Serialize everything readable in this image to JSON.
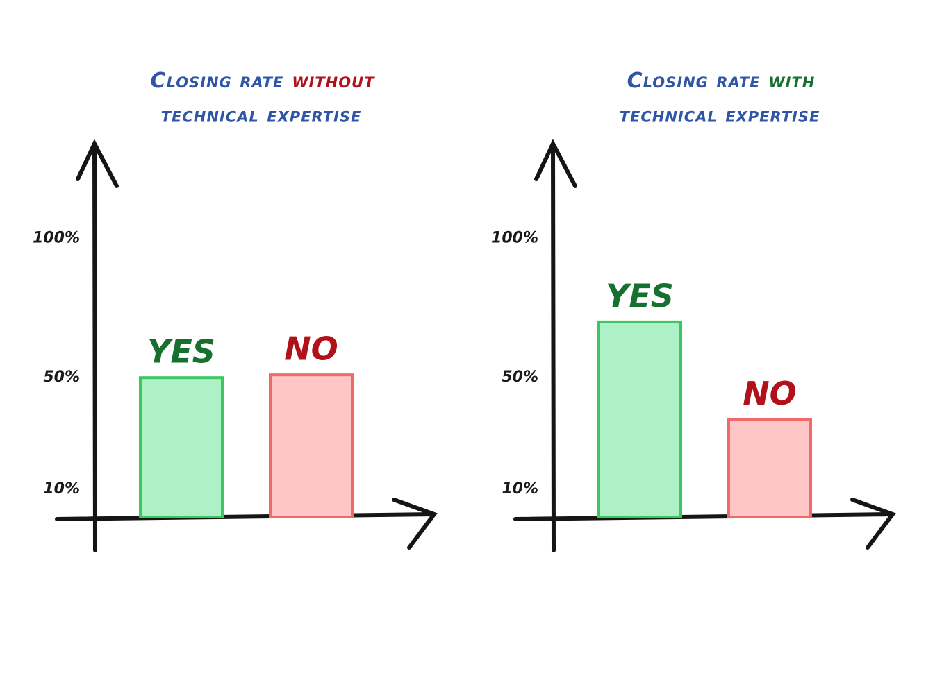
{
  "chart_data": [
    {
      "type": "bar",
      "title": [
        {
          "text": "Closing rate",
          "color": "#2f55a4"
        },
        {
          "text": "without",
          "color": "#b0111a"
        },
        {
          "text": "technical expertise",
          "color": "#2f55a4"
        }
      ],
      "categories": [
        "YES",
        "NO"
      ],
      "values": [
        50,
        51
      ],
      "colors": [
        "#aef0c8",
        "#fec6c6"
      ],
      "edge_colors": [
        "#3cc75f",
        "#f06a6a"
      ],
      "label_colors": [
        "#17702e",
        "#b0111a"
      ],
      "ylim": [
        0,
        125
      ],
      "yticks": [
        {
          "value": 10,
          "label": "10%"
        },
        {
          "value": 50,
          "label": "50%"
        },
        {
          "value": 100,
          "label": "100%"
        }
      ]
    },
    {
      "type": "bar",
      "title": [
        {
          "text": "Closing rate",
          "color": "#2f55a4"
        },
        {
          "text": "with",
          "color": "#17702e"
        },
        {
          "text": "technical expertise",
          "color": "#2f55a4"
        }
      ],
      "categories": [
        "YES",
        "NO"
      ],
      "values": [
        70,
        35
      ],
      "colors": [
        "#aef0c8",
        "#fec6c6"
      ],
      "edge_colors": [
        "#3cc75f",
        "#f06a6a"
      ],
      "label_colors": [
        "#17702e",
        "#b0111a"
      ],
      "ylim": [
        0,
        125
      ],
      "yticks": [
        {
          "value": 10,
          "label": "10%"
        },
        {
          "value": 50,
          "label": "50%"
        },
        {
          "value": 100,
          "label": "100%"
        }
      ]
    }
  ]
}
